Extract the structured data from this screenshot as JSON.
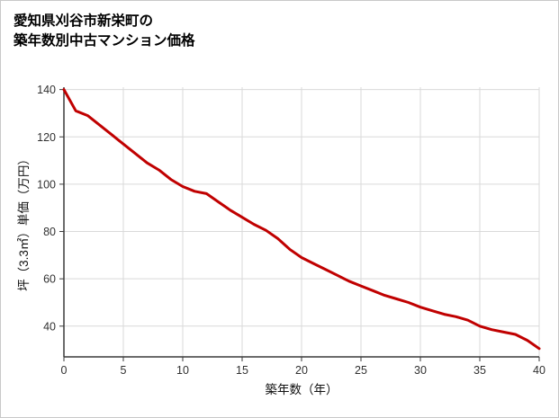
{
  "title": {
    "line1": "愛知県刈谷市新栄町の",
    "line2": "築年数別中古マンション価格"
  },
  "colors": {
    "line": "#c00000",
    "grid": "#d9d9d9",
    "axis": "#3a3a3a",
    "background": "#ffffff"
  },
  "chart_data": {
    "type": "line",
    "title": "愛知県刈谷市新栄町の築年数別中古マンション価格",
    "xlabel": "築年数（年）",
    "ylabel": "坪（3.3㎡）単価（万円）",
    "xlim": [
      0,
      40
    ],
    "ylim": [
      27,
      141
    ],
    "xticks": [
      0,
      5,
      10,
      15,
      20,
      25,
      30,
      35,
      40
    ],
    "yticks": [
      40,
      60,
      80,
      100,
      120,
      140
    ],
    "grid": true,
    "legend": false,
    "series": [
      {
        "name": "坪単価",
        "x": [
          0,
          1,
          2,
          3,
          4,
          5,
          6,
          7,
          8,
          9,
          10,
          11,
          12,
          13,
          14,
          15,
          16,
          17,
          18,
          19,
          20,
          21,
          22,
          23,
          24,
          25,
          26,
          27,
          28,
          29,
          30,
          31,
          32,
          33,
          34,
          35,
          36,
          37,
          38,
          39,
          40
        ],
        "values": [
          140,
          131,
          129,
          125,
          121,
          117,
          113,
          109,
          106,
          102,
          99,
          97,
          96,
          92.5,
          89,
          86,
          83,
          80.5,
          77,
          72.5,
          69,
          66.5,
          64,
          61.5,
          59,
          57,
          55,
          53,
          51.5,
          50,
          48,
          46.5,
          45,
          44,
          42.5,
          40,
          38.5,
          37.5,
          36.5,
          34,
          30.5
        ]
      }
    ]
  }
}
